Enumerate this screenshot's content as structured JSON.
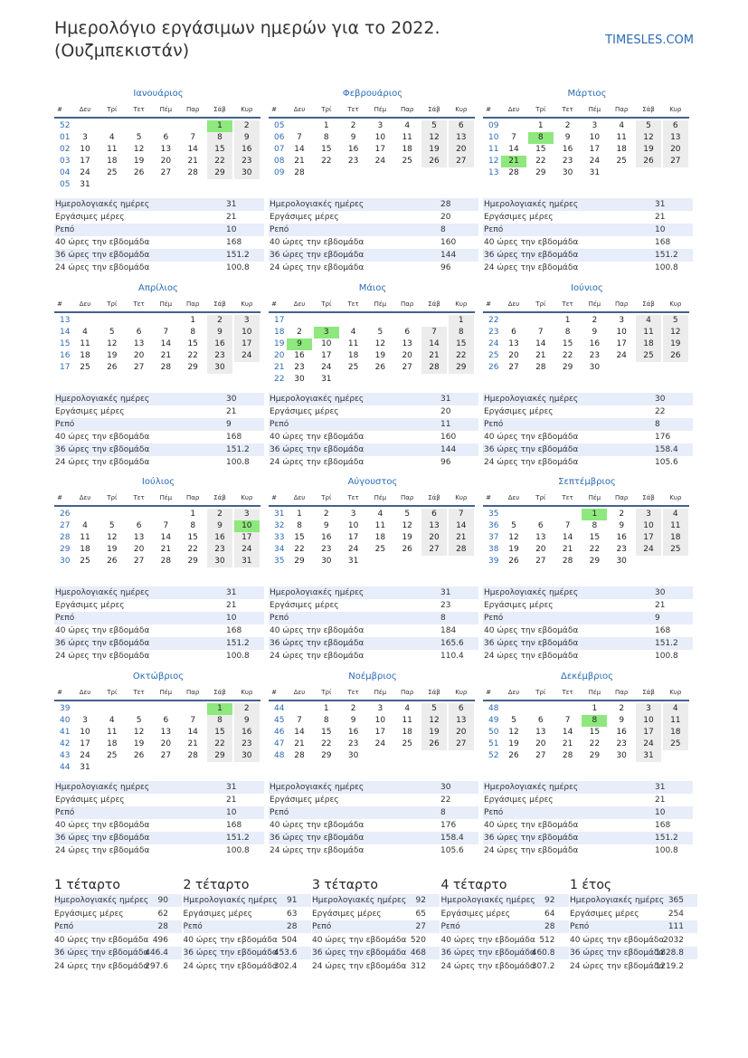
{
  "header": {
    "title_lines": [
      "Ημερολόγιο εργάσιμων ημερών για το 2022.",
      "(Ουζμπεκιστάν)"
    ],
    "site": "TIMESLES.COM"
  },
  "labels": {
    "week": "#",
    "weekdays": [
      "Δευ",
      "Τρί",
      "Τετ",
      "Πέμ",
      "Παρ",
      "Σάβ",
      "Κυρ"
    ],
    "stats": [
      "Ημερολογιακές ημέρες",
      "Εργάσιμες μέρες",
      "Ρεπό",
      "40 ώρες την εβδομάδα",
      "36 ώρες την εβδομάδα",
      "24 ώρες την εβδομάδα"
    ]
  },
  "months": [
    {
      "name": "Ιανουάριος",
      "holidays": [
        1
      ],
      "stats": [
        31,
        21,
        10,
        168,
        151.2,
        100.8
      ],
      "weeks": [
        {
          "number": "52",
          "days": [
            null,
            null,
            null,
            null,
            null,
            1,
            2
          ]
        },
        {
          "number": "01",
          "days": [
            3,
            4,
            5,
            6,
            7,
            8,
            9
          ]
        },
        {
          "number": "02",
          "days": [
            10,
            11,
            12,
            13,
            14,
            15,
            16
          ]
        },
        {
          "number": "03",
          "days": [
            17,
            18,
            19,
            20,
            21,
            22,
            23
          ]
        },
        {
          "number": "04",
          "days": [
            24,
            25,
            26,
            27,
            28,
            29,
            30
          ]
        },
        {
          "number": "05",
          "days": [
            31,
            null,
            null,
            null,
            null,
            null,
            null
          ]
        }
      ]
    },
    {
      "name": "Φεβρουάριος",
      "holidays": [],
      "stats": [
        28,
        20,
        8,
        160,
        144,
        96
      ],
      "weeks": [
        {
          "number": "05",
          "days": [
            null,
            1,
            2,
            3,
            4,
            5,
            6
          ]
        },
        {
          "number": "06",
          "days": [
            7,
            8,
            9,
            10,
            11,
            12,
            13
          ]
        },
        {
          "number": "07",
          "days": [
            14,
            15,
            16,
            17,
            18,
            19,
            20
          ]
        },
        {
          "number": "08",
          "days": [
            21,
            22,
            23,
            24,
            25,
            26,
            27
          ]
        },
        {
          "number": "09",
          "days": [
            28,
            null,
            null,
            null,
            null,
            null,
            null
          ]
        }
      ]
    },
    {
      "name": "Μάρτιος",
      "holidays": [
        8,
        21
      ],
      "stats": [
        31,
        21,
        10,
        168,
        151.2,
        100.8
      ],
      "weeks": [
        {
          "number": "09",
          "days": [
            null,
            1,
            2,
            3,
            4,
            5,
            6
          ]
        },
        {
          "number": "10",
          "days": [
            7,
            8,
            9,
            10,
            11,
            12,
            13
          ]
        },
        {
          "number": "11",
          "days": [
            14,
            15,
            16,
            17,
            18,
            19,
            20
          ]
        },
        {
          "number": "12",
          "days": [
            21,
            22,
            23,
            24,
            25,
            26,
            27
          ]
        },
        {
          "number": "13",
          "days": [
            28,
            29,
            30,
            31,
            null,
            null,
            null
          ]
        }
      ]
    },
    {
      "name": "Απρίλιος",
      "holidays": [],
      "stats": [
        30,
        21,
        9,
        168,
        151.2,
        100.8
      ],
      "weeks": [
        {
          "number": "13",
          "days": [
            null,
            null,
            null,
            null,
            1,
            2,
            3
          ]
        },
        {
          "number": "14",
          "days": [
            4,
            5,
            6,
            7,
            8,
            9,
            10
          ]
        },
        {
          "number": "15",
          "days": [
            11,
            12,
            13,
            14,
            15,
            16,
            17
          ]
        },
        {
          "number": "16",
          "days": [
            18,
            19,
            20,
            21,
            22,
            23,
            24
          ]
        },
        {
          "number": "17",
          "days": [
            25,
            26,
            27,
            28,
            29,
            30,
            null
          ]
        }
      ]
    },
    {
      "name": "Μάιος",
      "holidays": [
        3,
        9
      ],
      "stats": [
        31,
        20,
        11,
        160,
        144,
        96
      ],
      "weeks": [
        {
          "number": "17",
          "days": [
            null,
            null,
            null,
            null,
            null,
            null,
            1
          ]
        },
        {
          "number": "18",
          "days": [
            2,
            3,
            4,
            5,
            6,
            7,
            8
          ]
        },
        {
          "number": "19",
          "days": [
            9,
            10,
            11,
            12,
            13,
            14,
            15
          ]
        },
        {
          "number": "20",
          "days": [
            16,
            17,
            18,
            19,
            20,
            21,
            22
          ]
        },
        {
          "number": "21",
          "days": [
            23,
            24,
            25,
            26,
            27,
            28,
            29
          ]
        },
        {
          "number": "22",
          "days": [
            30,
            31,
            null,
            null,
            null,
            null,
            null
          ]
        }
      ]
    },
    {
      "name": "Ιούνιος",
      "holidays": [],
      "stats": [
        30,
        22,
        8,
        176,
        158.4,
        105.6
      ],
      "weeks": [
        {
          "number": "22",
          "days": [
            null,
            null,
            1,
            2,
            3,
            4,
            5
          ]
        },
        {
          "number": "23",
          "days": [
            6,
            7,
            8,
            9,
            10,
            11,
            12
          ]
        },
        {
          "number": "24",
          "days": [
            13,
            14,
            15,
            16,
            17,
            18,
            19
          ]
        },
        {
          "number": "25",
          "days": [
            20,
            21,
            22,
            23,
            24,
            25,
            26
          ]
        },
        {
          "number": "26",
          "days": [
            27,
            28,
            29,
            30,
            null,
            null,
            null
          ]
        }
      ]
    },
    {
      "name": "Ιούλιος",
      "holidays": [
        10
      ],
      "stats": [
        31,
        21,
        10,
        168,
        151.2,
        100.8
      ],
      "weeks": [
        {
          "number": "26",
          "days": [
            null,
            null,
            null,
            null,
            1,
            2,
            3
          ]
        },
        {
          "number": "27",
          "days": [
            4,
            5,
            6,
            7,
            8,
            9,
            10
          ]
        },
        {
          "number": "28",
          "days": [
            11,
            12,
            13,
            14,
            15,
            16,
            17
          ]
        },
        {
          "number": "29",
          "days": [
            18,
            19,
            20,
            21,
            22,
            23,
            24
          ]
        },
        {
          "number": "30",
          "days": [
            25,
            26,
            27,
            28,
            29,
            30,
            31
          ]
        }
      ]
    },
    {
      "name": "Αύγουστος",
      "holidays": [],
      "stats": [
        31,
        23,
        8,
        184,
        165.6,
        110.4
      ],
      "weeks": [
        {
          "number": "31",
          "days": [
            1,
            2,
            3,
            4,
            5,
            6,
            7
          ]
        },
        {
          "number": "32",
          "days": [
            8,
            9,
            10,
            11,
            12,
            13,
            14
          ]
        },
        {
          "number": "33",
          "days": [
            15,
            16,
            17,
            18,
            19,
            20,
            21
          ]
        },
        {
          "number": "34",
          "days": [
            22,
            23,
            24,
            25,
            26,
            27,
            28
          ]
        },
        {
          "number": "35",
          "days": [
            29,
            30,
            31,
            null,
            null,
            null,
            null
          ]
        }
      ]
    },
    {
      "name": "Σεπτέμβριος",
      "holidays": [
        1
      ],
      "stats": [
        30,
        21,
        9,
        168,
        151.2,
        100.8
      ],
      "weeks": [
        {
          "number": "35",
          "days": [
            null,
            null,
            null,
            1,
            2,
            3,
            4
          ]
        },
        {
          "number": "36",
          "days": [
            5,
            6,
            7,
            8,
            9,
            10,
            11
          ]
        },
        {
          "number": "37",
          "days": [
            12,
            13,
            14,
            15,
            16,
            17,
            18
          ]
        },
        {
          "number": "38",
          "days": [
            19,
            20,
            21,
            22,
            23,
            24,
            25
          ]
        },
        {
          "number": "39",
          "days": [
            26,
            27,
            28,
            29,
            30,
            null,
            null
          ]
        }
      ]
    },
    {
      "name": "Οκτώβριος",
      "holidays": [
        1
      ],
      "stats": [
        31,
        21,
        10,
        168,
        151.2,
        100.8
      ],
      "weeks": [
        {
          "number": "39",
          "days": [
            null,
            null,
            null,
            null,
            null,
            1,
            2
          ]
        },
        {
          "number": "40",
          "days": [
            3,
            4,
            5,
            6,
            7,
            8,
            9
          ]
        },
        {
          "number": "41",
          "days": [
            10,
            11,
            12,
            13,
            14,
            15,
            16
          ]
        },
        {
          "number": "42",
          "days": [
            17,
            18,
            19,
            20,
            21,
            22,
            23
          ]
        },
        {
          "number": "43",
          "days": [
            24,
            25,
            26,
            27,
            28,
            29,
            30
          ]
        },
        {
          "number": "44",
          "days": [
            31,
            null,
            null,
            null,
            null,
            null,
            null
          ]
        }
      ]
    },
    {
      "name": "Νοέμβριος",
      "holidays": [],
      "stats": [
        30,
        22,
        8,
        176,
        158.4,
        105.6
      ],
      "weeks": [
        {
          "number": "44",
          "days": [
            null,
            1,
            2,
            3,
            4,
            5,
            6
          ]
        },
        {
          "number": "45",
          "days": [
            7,
            8,
            9,
            10,
            11,
            12,
            13
          ]
        },
        {
          "number": "46",
          "days": [
            14,
            15,
            16,
            17,
            18,
            19,
            20
          ]
        },
        {
          "number": "47",
          "days": [
            21,
            22,
            23,
            24,
            25,
            26,
            27
          ]
        },
        {
          "number": "48",
          "days": [
            28,
            29,
            30,
            null,
            null,
            null,
            null
          ]
        }
      ]
    },
    {
      "name": "Δεκέμβριος",
      "holidays": [
        8
      ],
      "stats": [
        31,
        21,
        10,
        168,
        151.2,
        100.8
      ],
      "weeks": [
        {
          "number": "48",
          "days": [
            null,
            null,
            null,
            1,
            2,
            3,
            4
          ]
        },
        {
          "number": "49",
          "days": [
            5,
            6,
            7,
            8,
            9,
            10,
            11
          ]
        },
        {
          "number": "50",
          "days": [
            12,
            13,
            14,
            15,
            16,
            17,
            18
          ]
        },
        {
          "number": "51",
          "days": [
            19,
            20,
            21,
            22,
            23,
            24,
            25
          ]
        },
        {
          "number": "52",
          "days": [
            26,
            27,
            28,
            29,
            30,
            31,
            null
          ]
        }
      ]
    }
  ],
  "summary": [
    {
      "title": "1 τέταρτο",
      "values": [
        90,
        62,
        28,
        496,
        446.4,
        297.6
      ]
    },
    {
      "title": "2 τέταρτο",
      "values": [
        91,
        63,
        28,
        504,
        453.6,
        302.4
      ]
    },
    {
      "title": "3 τέταρτο",
      "values": [
        92,
        65,
        27,
        520,
        468,
        312
      ]
    },
    {
      "title": "4 τέταρτο",
      "values": [
        92,
        64,
        28,
        512,
        460.8,
        307.2
      ]
    },
    {
      "title": "1 έτος",
      "values": [
        365,
        254,
        111,
        2032,
        1828.8,
        1219.2
      ]
    }
  ]
}
